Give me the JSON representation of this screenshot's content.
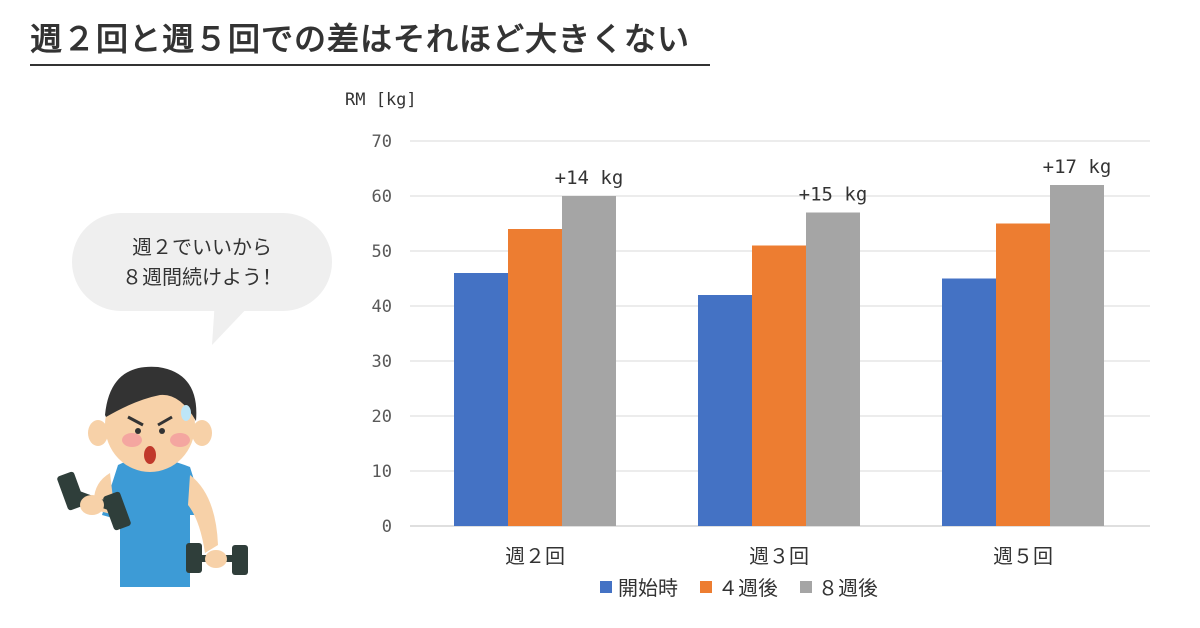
{
  "title": "週２回と週５回での差はそれほど大きくない",
  "bubble": {
    "line1": "週２でいいから",
    "line2": "８週間続けよう！"
  },
  "colors": {
    "series": [
      "#4472c4",
      "#ed7d31",
      "#a5a5a5"
    ],
    "grid": "#d9d9d9",
    "axis_text": "#595959"
  },
  "chart_data": {
    "type": "bar",
    "ylabel": "RM [kg]",
    "ylim": [
      0,
      70
    ],
    "yticks": [
      0,
      10,
      20,
      30,
      40,
      50,
      60,
      70
    ],
    "grid": true,
    "legend_position": "bottom",
    "categories": [
      "週２回",
      "週３回",
      "週５回"
    ],
    "series": [
      {
        "name": "開始時",
        "values": [
          46,
          42,
          45
        ]
      },
      {
        "name": "４週後",
        "values": [
          54,
          51,
          55
        ]
      },
      {
        "name": "８週後",
        "values": [
          60,
          57,
          62
        ]
      }
    ],
    "annotations": [
      "+14 kg",
      "+15 kg",
      "+17 kg"
    ]
  }
}
